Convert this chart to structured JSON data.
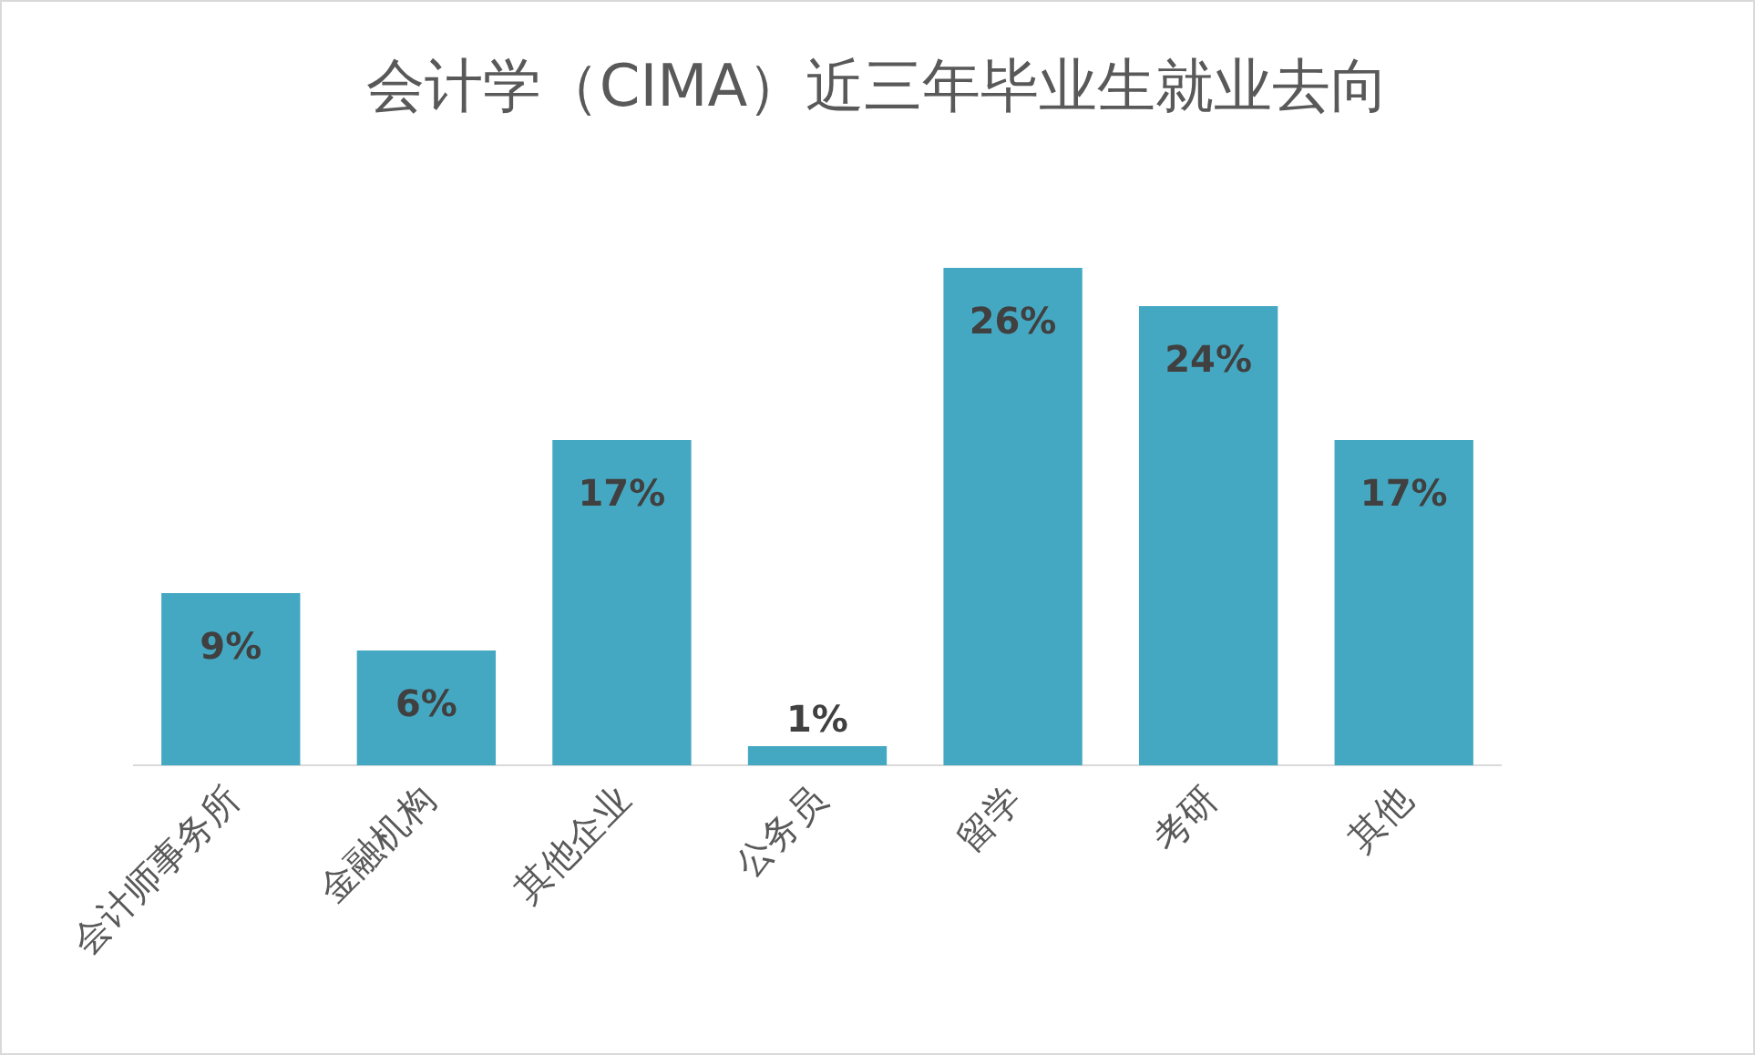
{
  "chart_data": {
    "type": "bar",
    "title": "会计学（CIMA）近三年毕业生就业去向",
    "categories": [
      "会计师事务所",
      "金融机构",
      "其他企业",
      "公务员",
      "留学",
      "考研",
      "其他"
    ],
    "values": [
      9,
      6,
      17,
      1,
      26,
      24,
      17
    ],
    "value_labels": [
      "9%",
      "6%",
      "17%",
      "1%",
      "26%",
      "24%",
      "17%"
    ],
    "color": "#45a8c2"
  }
}
